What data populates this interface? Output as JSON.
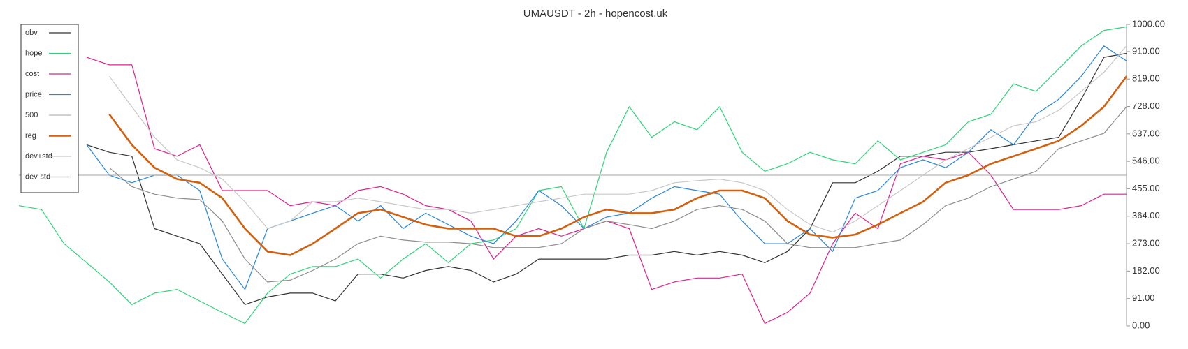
{
  "chart_data": {
    "type": "line",
    "title": "UMAUSDT - 2h - hopencost.uk",
    "ylim": [
      0,
      1000
    ],
    "yticks": [
      {
        "value": 0,
        "label": "0.00"
      },
      {
        "value": 91,
        "label": "91.00"
      },
      {
        "value": 182,
        "label": "182.00"
      },
      {
        "value": 273,
        "label": "273.00"
      },
      {
        "value": 364,
        "label": "364.00"
      },
      {
        "value": 455,
        "label": "455.00"
      },
      {
        "value": 546,
        "label": "546.00"
      },
      {
        "value": 637,
        "label": "637.00"
      },
      {
        "value": 728,
        "label": "728.00"
      },
      {
        "value": 819,
        "label": "819.00"
      },
      {
        "value": 910,
        "label": "910.00"
      },
      {
        "value": 1000,
        "label": "1000.00"
      }
    ],
    "legend": "upper left",
    "series": [
      {
        "name": "obv",
        "color": "#333333",
        "values": [
          null,
          null,
          null,
          601,
          576,
          563,
          323,
          298,
          273,
          172,
          71,
          96,
          109,
          109,
          83,
          172,
          172,
          159,
          184,
          197,
          184,
          146,
          172,
          222,
          222,
          222,
          222,
          235,
          235,
          247,
          235,
          247,
          235,
          210,
          247,
          323,
          475,
          475,
          513,
          563,
          563,
          576,
          576,
          588,
          601,
          614,
          626,
          752,
          891,
          904
        ]
      },
      {
        "name": "hope",
        "color": "#2ed47a",
        "values": [
          399,
          386,
          273,
          210,
          146,
          71,
          109,
          121,
          83,
          45,
          8,
          109,
          172,
          197,
          197,
          222,
          159,
          222,
          273,
          210,
          273,
          285,
          323,
          449,
          462,
          323,
          576,
          727,
          626,
          677,
          651,
          727,
          576,
          513,
          538,
          576,
          551,
          538,
          614,
          551,
          576,
          601,
          677,
          702,
          803,
          778,
          853,
          929,
          980,
          992
        ]
      },
      {
        "name": "cost",
        "color": "#e0208c",
        "values": [
          null,
          null,
          null,
          891,
          866,
          866,
          588,
          563,
          601,
          449,
          449,
          449,
          399,
          412,
          399,
          449,
          462,
          437,
          399,
          386,
          348,
          222,
          298,
          323,
          298,
          323,
          348,
          323,
          121,
          146,
          159,
          159,
          172,
          8,
          45,
          109,
          273,
          374,
          323,
          538,
          563,
          551,
          576,
          500,
          386,
          386,
          386,
          399,
          437,
          437
        ]
      },
      {
        "name": "price",
        "color": "#2a88dc",
        "values": [
          null,
          null,
          null,
          601,
          500,
          475,
          500,
          500,
          449,
          222,
          121,
          323,
          348,
          374,
          399,
          348,
          399,
          323,
          374,
          336,
          298,
          273,
          348,
          449,
          399,
          323,
          361,
          374,
          424,
          462,
          449,
          437,
          348,
          273,
          273,
          323,
          247,
          424,
          449,
          525,
          551,
          525,
          576,
          651,
          601,
          702,
          752,
          828,
          929,
          879
        ]
      },
      {
        "name": "500",
        "color": "#b8b8b8",
        "values": [
          500,
          500,
          500,
          500,
          500,
          500,
          500,
          500,
          500,
          500,
          500,
          500,
          500,
          500,
          500,
          500,
          500,
          500,
          500,
          500,
          500,
          500,
          500,
          500,
          500,
          500,
          500,
          500,
          500,
          500,
          500,
          500,
          500,
          500,
          500,
          500,
          500,
          500,
          500,
          500,
          500,
          500,
          500,
          500,
          500,
          500,
          500,
          500,
          500,
          500
        ]
      },
      {
        "name": "reg",
        "color": "#d2600f",
        "values": [
          null,
          null,
          null,
          null,
          702,
          601,
          525,
          487,
          475,
          424,
          323,
          247,
          235,
          273,
          323,
          374,
          386,
          361,
          336,
          323,
          323,
          323,
          298,
          298,
          323,
          361,
          386,
          374,
          374,
          386,
          424,
          449,
          449,
          424,
          348,
          303,
          293,
          303,
          336,
          374,
          412,
          475,
          500,
          538,
          563,
          588,
          614,
          664,
          727,
          828
        ]
      },
      {
        "name": "dev+std",
        "color": "#c8c8c8",
        "values": [
          null,
          null,
          null,
          null,
          828,
          727,
          626,
          551,
          525,
          487,
          412,
          323,
          348,
          412,
          412,
          424,
          412,
          399,
          386,
          386,
          374,
          386,
          399,
          412,
          424,
          437,
          437,
          437,
          449,
          475,
          482,
          487,
          475,
          449,
          386,
          336,
          311,
          348,
          399,
          449,
          500,
          551,
          588,
          626,
          664,
          677,
          715,
          778,
          841,
          929
        ]
      },
      {
        "name": "dev-std",
        "color": "#8e8e8e",
        "values": [
          null,
          null,
          null,
          null,
          525,
          462,
          437,
          424,
          419,
          348,
          222,
          146,
          152,
          184,
          222,
          273,
          298,
          285,
          278,
          278,
          273,
          260,
          260,
          260,
          273,
          323,
          348,
          336,
          323,
          348,
          386,
          399,
          386,
          348,
          273,
          260,
          260,
          260,
          273,
          285,
          336,
          399,
          424,
          462,
          487,
          513,
          588,
          614,
          639,
          727
        ]
      }
    ]
  }
}
